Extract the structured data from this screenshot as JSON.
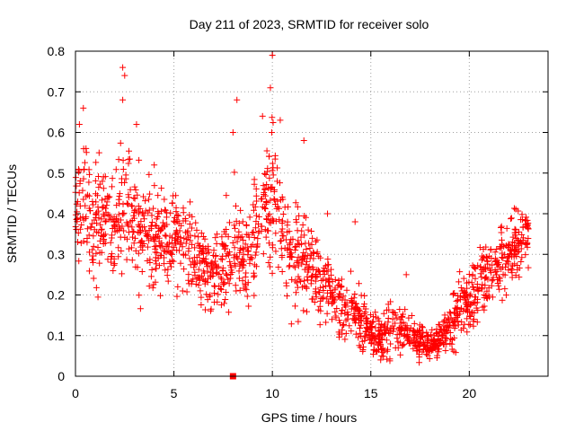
{
  "chart_data": {
    "type": "scatter",
    "title": "Day 211 of 2023, SRMTID for receiver solo",
    "xlabel": "GPS time / hours",
    "ylabel": "SRMTID / TECUs",
    "xlim": [
      0,
      24
    ],
    "ylim": [
      0,
      0.8
    ],
    "xticks": [
      "0",
      "5",
      "10",
      "15",
      "20"
    ],
    "yticks": [
      "0",
      "0.1",
      "0.2",
      "0.3",
      "0.4",
      "0.5",
      "0.6",
      "0.7",
      "0.8"
    ],
    "grid": true,
    "legend": "none",
    "marker": "plus",
    "color": "#ff0000",
    "square_marker": {
      "x": 8.0,
      "y": 0.0
    },
    "series": [
      {
        "name": "SRMTID",
        "profile": [
          [
            0.0,
            0.42,
            0.1
          ],
          [
            0.5,
            0.45,
            0.12
          ],
          [
            1.0,
            0.38,
            0.1
          ],
          [
            1.5,
            0.4,
            0.09
          ],
          [
            2.0,
            0.37,
            0.1
          ],
          [
            2.5,
            0.42,
            0.12
          ],
          [
            3.0,
            0.38,
            0.1
          ],
          [
            3.5,
            0.36,
            0.09
          ],
          [
            4.0,
            0.33,
            0.08
          ],
          [
            4.5,
            0.34,
            0.09
          ],
          [
            5.0,
            0.33,
            0.08
          ],
          [
            5.5,
            0.32,
            0.08
          ],
          [
            6.0,
            0.29,
            0.07
          ],
          [
            6.5,
            0.27,
            0.07
          ],
          [
            7.0,
            0.25,
            0.07
          ],
          [
            7.5,
            0.26,
            0.08
          ],
          [
            8.0,
            0.32,
            0.12
          ],
          [
            8.5,
            0.27,
            0.08
          ],
          [
            9.0,
            0.32,
            0.1
          ],
          [
            9.5,
            0.4,
            0.12
          ],
          [
            10.0,
            0.45,
            0.14
          ],
          [
            10.5,
            0.35,
            0.1
          ],
          [
            11.0,
            0.3,
            0.09
          ],
          [
            11.5,
            0.28,
            0.08
          ],
          [
            12.0,
            0.26,
            0.08
          ],
          [
            12.5,
            0.24,
            0.07
          ],
          [
            13.0,
            0.2,
            0.06
          ],
          [
            13.5,
            0.18,
            0.06
          ],
          [
            14.0,
            0.16,
            0.05
          ],
          [
            14.5,
            0.14,
            0.05
          ],
          [
            15.0,
            0.11,
            0.04
          ],
          [
            15.5,
            0.09,
            0.03
          ],
          [
            16.0,
            0.11,
            0.05
          ],
          [
            16.5,
            0.12,
            0.04
          ],
          [
            17.0,
            0.1,
            0.03
          ],
          [
            17.5,
            0.09,
            0.03
          ],
          [
            18.0,
            0.08,
            0.02
          ],
          [
            18.5,
            0.09,
            0.03
          ],
          [
            19.0,
            0.12,
            0.04
          ],
          [
            19.5,
            0.17,
            0.05
          ],
          [
            20.0,
            0.18,
            0.05
          ],
          [
            20.5,
            0.22,
            0.06
          ],
          [
            21.0,
            0.25,
            0.06
          ],
          [
            21.5,
            0.28,
            0.06
          ],
          [
            22.0,
            0.31,
            0.06
          ],
          [
            22.5,
            0.34,
            0.06
          ],
          [
            23.0,
            0.35,
            0.06
          ]
        ],
        "spikes": [
          [
            0.2,
            0.62
          ],
          [
            0.4,
            0.66
          ],
          [
            1.2,
            0.55
          ],
          [
            2.4,
            0.76
          ],
          [
            2.5,
            0.74
          ],
          [
            2.4,
            0.68
          ],
          [
            3.1,
            0.62
          ],
          [
            4.0,
            0.52
          ],
          [
            8.2,
            0.68
          ],
          [
            8.0,
            0.6
          ],
          [
            9.5,
            0.64
          ],
          [
            9.9,
            0.71
          ],
          [
            10.0,
            0.79
          ],
          [
            10.4,
            0.63
          ],
          [
            11.6,
            0.58
          ],
          [
            12.8,
            0.4
          ],
          [
            14.2,
            0.38
          ],
          [
            15.5,
            0.04
          ],
          [
            16.8,
            0.25
          ],
          [
            20.2,
            0.22
          ]
        ],
        "points_per_hour": 78
      }
    ]
  }
}
